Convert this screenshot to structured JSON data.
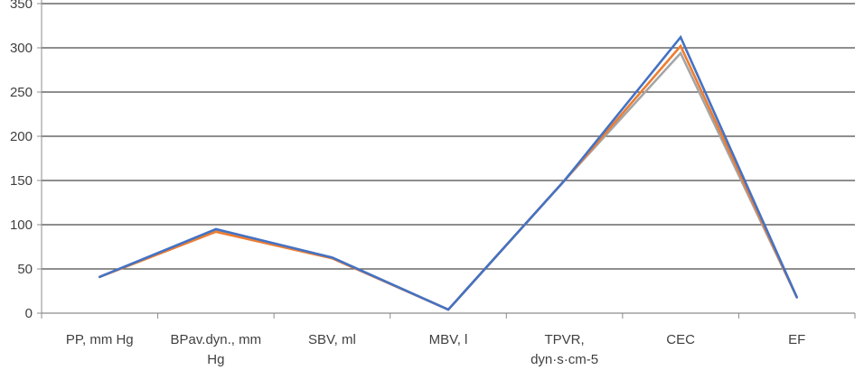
{
  "chart_data": {
    "type": "line",
    "title": "",
    "xlabel": "",
    "ylabel": "",
    "categories": [
      [
        "PP, mm Hg"
      ],
      [
        "BPav.dyn., mm",
        "Hg"
      ],
      [
        "SBV, ml"
      ],
      [
        "MBV, l"
      ],
      [
        "TPVR,",
        "dyn·s·cm-5"
      ],
      [
        "CEC"
      ],
      [
        "EF"
      ]
    ],
    "ylim": [
      0,
      350
    ],
    "yticks": [
      0,
      50,
      100,
      150,
      200,
      250,
      300,
      350
    ],
    "grid": true,
    "series": [
      {
        "name": "series-gray",
        "color": "#a5a5a5",
        "values": [
          41,
          94,
          63,
          4,
          150,
          294,
          18
        ]
      },
      {
        "name": "series-orange",
        "color": "#ed7d31",
        "values": [
          41,
          92,
          62,
          4,
          150,
          302,
          18
        ]
      },
      {
        "name": "series-blue",
        "color": "#4472c4",
        "values": [
          41,
          95,
          63,
          4,
          150,
          312,
          18
        ]
      }
    ]
  }
}
